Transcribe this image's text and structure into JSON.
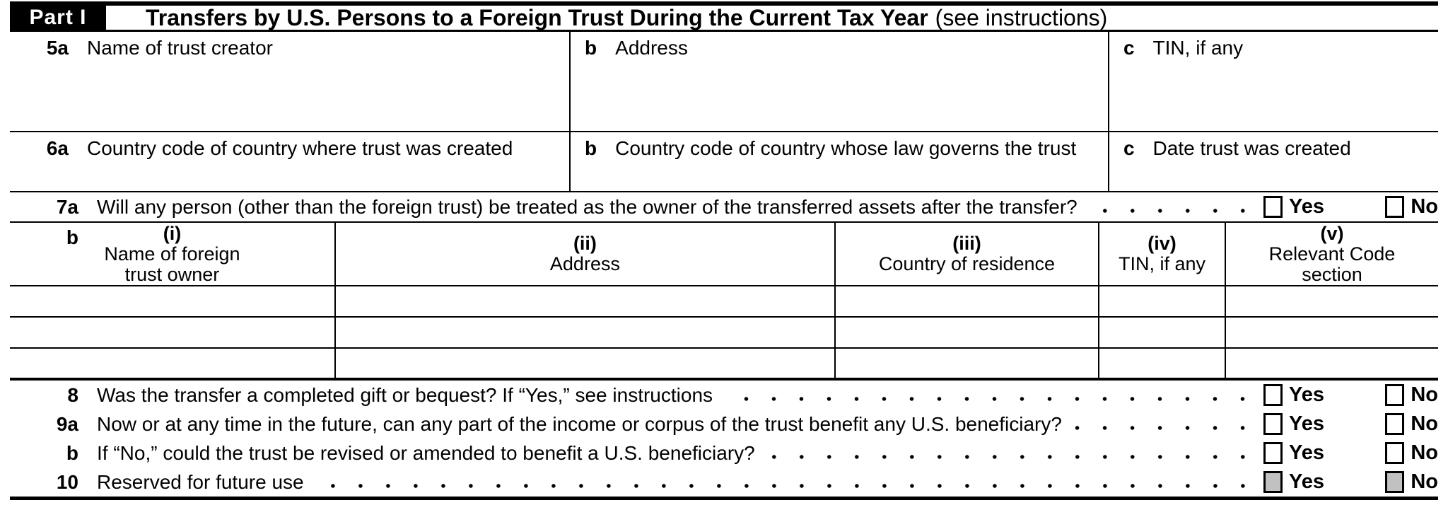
{
  "header": {
    "part_label": "Part I",
    "title": "Transfers by U.S. Persons to a Foreign Trust During the Current Tax Year",
    "title_note": "(see instructions)"
  },
  "labels": {
    "yes": "Yes",
    "no": "No"
  },
  "row5": {
    "a": {
      "num": "5a",
      "label": "Name of trust creator"
    },
    "b": {
      "num": "b",
      "label": "Address"
    },
    "c": {
      "num": "c",
      "label": "TIN, if any"
    }
  },
  "row6": {
    "a": {
      "num": "6a",
      "label": "Country code of country where trust was created"
    },
    "b": {
      "num": "b",
      "label": "Country code of country whose law governs the trust"
    },
    "c": {
      "num": "c",
      "label": "Date trust was created"
    }
  },
  "q7a": {
    "num": "7a",
    "text": "Will any person (other than the foreign trust) be treated as the owner of the transferred assets after the transfer?"
  },
  "table7b": {
    "row_label": "b",
    "columns": [
      {
        "index": "(i)",
        "label": "Name of foreign\ntrust owner"
      },
      {
        "index": "(ii)",
        "label": "Address"
      },
      {
        "index": "(iii)",
        "label": "Country of residence"
      },
      {
        "index": "(iv)",
        "label": "TIN, if any"
      },
      {
        "index": "(v)",
        "label": "Relevant Code\nsection"
      }
    ],
    "empty_row_count": 3
  },
  "questions": [
    {
      "num": "8",
      "text": "Was the transfer a completed gift or bequest? If “Yes,” see instructions",
      "shaded": false
    },
    {
      "num": "9a",
      "text": "Now or at any time in the future, can any part of the income or corpus of the trust benefit any U.S. beneficiary?",
      "shaded": false
    },
    {
      "num": "b",
      "text": "If “No,” could the trust be revised or amended to benefit a U.S. beneficiary?",
      "shaded": false
    },
    {
      "num": "10",
      "text": "Reserved for future use",
      "shaded": true
    }
  ],
  "colors": {
    "ink": "#000000",
    "shaded_checkbox": "#c1c1c1"
  }
}
